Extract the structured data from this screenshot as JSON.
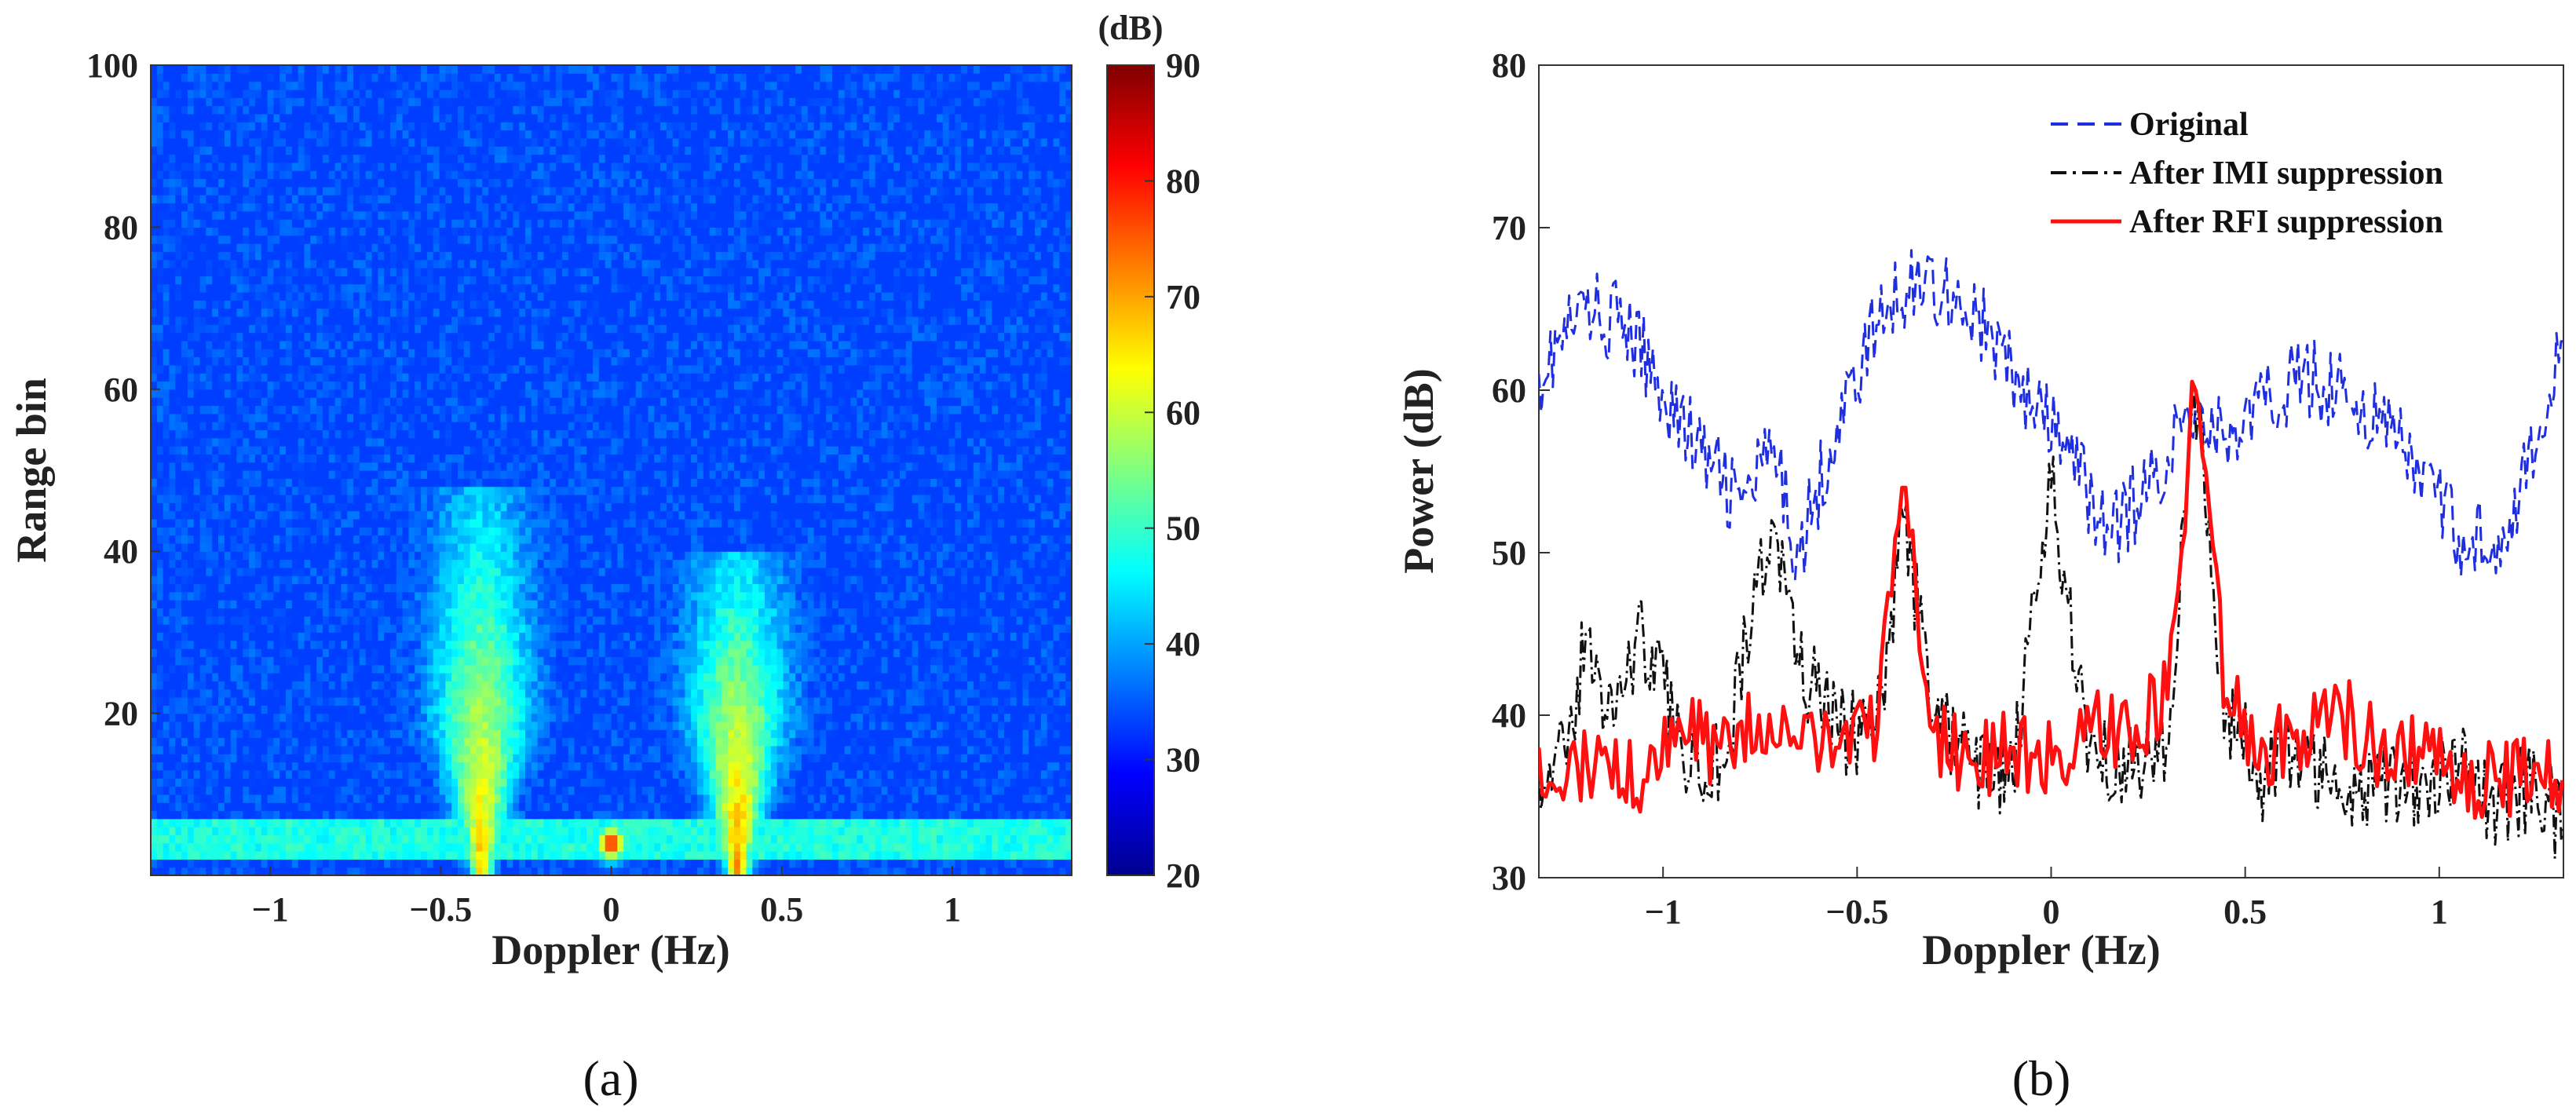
{
  "chart_data": [
    {
      "panel": "(a)",
      "type": "heatmap",
      "title": "",
      "xlabel": "Doppler (Hz)",
      "ylabel": "Range bin",
      "xlim": [
        -1.35,
        1.35
      ],
      "ylim": [
        0,
        100
      ],
      "xticks": [
        -1,
        -0.5,
        0,
        0.5,
        1
      ],
      "xtick_labels": [
        "−1",
        "−0.5",
        "0",
        "0.5",
        "1"
      ],
      "yticks": [
        20,
        40,
        60,
        80,
        100
      ],
      "ytick_labels": [
        "20",
        "40",
        "60",
        "80",
        "100"
      ],
      "colorbar": {
        "label": "(dB)",
        "range": [
          20,
          90
        ],
        "ticks": [
          20,
          30,
          40,
          50,
          60,
          70,
          80,
          90
        ],
        "tick_labels": [
          "20",
          "30",
          "40",
          "50",
          "60",
          "70",
          "80",
          "90"
        ],
        "colormap": "jet"
      },
      "background_db": 33,
      "features": [
        {
          "name": "clutter band",
          "range_bins": [
            2,
            7
          ],
          "doppler": [
            -1.35,
            1.35
          ],
          "db": 48
        },
        {
          "name": "Bragg peak negative",
          "doppler": -0.38,
          "range_bins": [
            1,
            48
          ],
          "peak_db": 68
        },
        {
          "name": "Bragg peak positive",
          "doppler": 0.37,
          "range_bins": [
            1,
            40
          ],
          "peak_db": 72
        },
        {
          "name": "zero-Doppler interference",
          "doppler": 0.0,
          "range_bin": 4,
          "peak_db": 80
        }
      ]
    },
    {
      "panel": "(b)",
      "type": "line",
      "title": "",
      "xlabel": "Doppler (Hz)",
      "ylabel": "Power (dB)",
      "xlim": [
        -1.32,
        1.32
      ],
      "ylim": [
        30,
        80
      ],
      "xticks": [
        -1,
        -0.5,
        0,
        0.5,
        1
      ],
      "xtick_labels": [
        "−1",
        "−0.5",
        "0",
        "0.5",
        "1"
      ],
      "yticks": [
        30,
        40,
        50,
        60,
        70,
        80
      ],
      "ytick_labels": [
        "30",
        "40",
        "50",
        "60",
        "70",
        "80"
      ],
      "legend_position": "top-right",
      "series": [
        {
          "name": "Original",
          "color": "#1f2fe0",
          "style": "dashed",
          "x": [
            -1.32,
            -1.2,
            -1.1,
            -1.0,
            -0.9,
            -0.8,
            -0.72,
            -0.65,
            -0.55,
            -0.45,
            -0.35,
            -0.25,
            -0.15,
            -0.05,
            0.05,
            0.15,
            0.25,
            0.37,
            0.45,
            0.55,
            0.65,
            0.75,
            0.85,
            0.95,
            1.05,
            1.15,
            1.25,
            1.32
          ],
          "values": [
            61,
            65,
            64,
            60,
            56,
            53,
            56,
            50,
            58,
            64,
            67,
            66,
            63,
            59,
            56,
            51,
            54,
            59,
            57,
            59,
            61,
            60,
            58,
            55,
            51,
            51,
            56,
            63
          ]
        },
        {
          "name": "After IMI suppression",
          "color": "#111111",
          "style": "dashdot",
          "x": [
            -1.32,
            -1.25,
            -1.2,
            -1.15,
            -1.05,
            -0.95,
            -0.85,
            -0.72,
            -0.65,
            -0.55,
            -0.45,
            -0.38,
            -0.3,
            -0.2,
            -0.1,
            0.0,
            0.1,
            0.2,
            0.3,
            0.37,
            0.45,
            0.55,
            0.65,
            0.75,
            0.85,
            0.95,
            1.05,
            1.15,
            1.25,
            1.32
          ],
          "values": [
            37,
            37,
            45,
            40,
            45,
            38,
            37,
            52,
            43,
            39,
            39,
            52,
            40,
            37,
            36,
            54,
            38,
            37,
            38,
            60,
            40,
            36,
            38,
            35,
            36,
            36,
            37,
            34,
            36,
            33
          ]
        },
        {
          "name": "After RFI suppression",
          "color": "#ff1010",
          "style": "solid",
          "x": [
            -1.32,
            -1.25,
            -1.15,
            -1.05,
            -0.95,
            -0.85,
            -0.75,
            -0.65,
            -0.55,
            -0.45,
            -0.38,
            -0.3,
            -0.2,
            -0.1,
            0.0,
            0.1,
            0.2,
            0.3,
            0.37,
            0.45,
            0.55,
            0.65,
            0.75,
            0.85,
            0.95,
            1.05,
            1.15,
            1.25,
            1.32
          ],
          "values": [
            38,
            36,
            38,
            36,
            39,
            38,
            40,
            38,
            38,
            39,
            54,
            39,
            37,
            38,
            37,
            39,
            39,
            41,
            60,
            41,
            38,
            39,
            40,
            38,
            38,
            36,
            36,
            37,
            36
          ]
        }
      ]
    }
  ],
  "panel_labels": {
    "a": "(a)",
    "b": "(b)"
  }
}
